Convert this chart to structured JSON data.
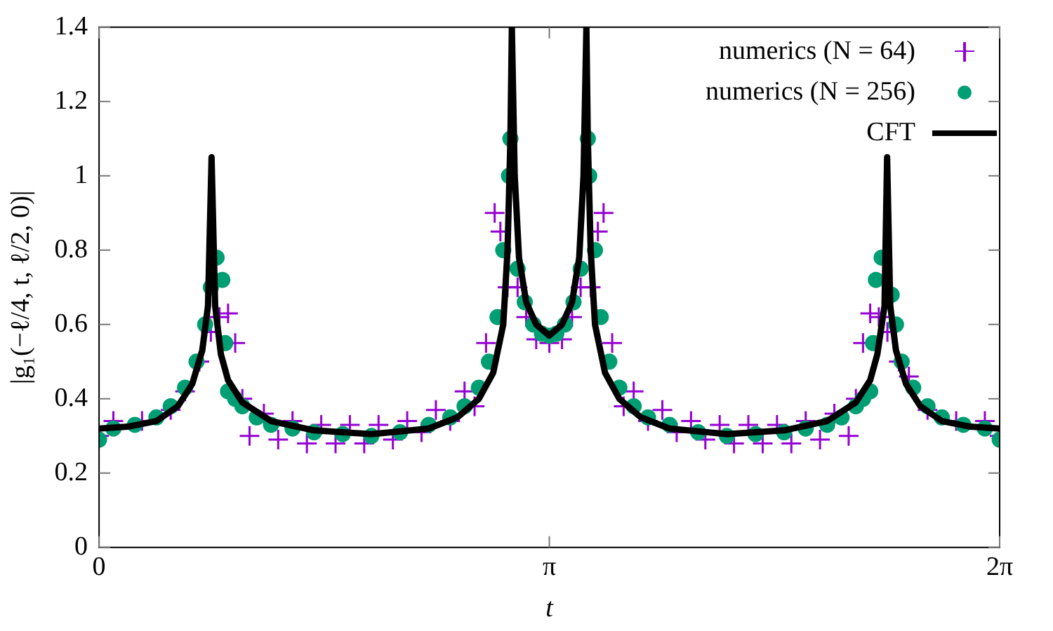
{
  "chart_data": {
    "type": "scatter",
    "xlabel": "t",
    "ylabel": "|g₁(−ℓ/4, t, ℓ/2, 0)|",
    "xlim": [
      0,
      6.2832
    ],
    "xticks": [
      0,
      {
        "value": 3.1416,
        "label": "π"
      },
      {
        "value": 6.2832,
        "label": "2π"
      }
    ],
    "ylim": [
      0,
      1.4
    ],
    "yticks": [
      0,
      0.2,
      0.4,
      0.6,
      0.8,
      1,
      1.2,
      1.4
    ],
    "legend": "top right",
    "series": [
      {
        "name": "numerics (N = 64)",
        "type": "scatter",
        "marker": "cross",
        "color": "#9400d3",
        "x": [
          0,
          0.1,
          0.3,
          0.5,
          0.6,
          0.7,
          0.78,
          0.84,
          0.9,
          0.95,
          1.0,
          1.05,
          1.15,
          1.25,
          1.35,
          1.45,
          1.55,
          1.65,
          1.75,
          1.85,
          1.95,
          2.05,
          2.15,
          2.25,
          2.35,
          2.45,
          2.55,
          2.62,
          2.7,
          2.76,
          2.8,
          2.85,
          2.92,
          2.98,
          3.05,
          3.1416,
          3.23,
          3.3,
          3.36,
          3.43,
          3.48,
          3.52,
          3.58,
          3.66,
          3.73,
          3.83,
          3.93,
          4.03,
          4.13,
          4.23,
          4.33,
          4.43,
          4.53,
          4.63,
          4.73,
          4.83,
          4.93,
          5.03,
          5.13,
          5.23,
          5.28,
          5.33,
          5.38,
          5.44,
          5.5,
          5.58,
          5.65,
          5.78,
          5.98,
          6.18,
          6.2832
        ],
        "values": [
          0.3,
          0.34,
          0.34,
          0.37,
          0.42,
          0.5,
          0.58,
          0.62,
          0.63,
          0.55,
          0.4,
          0.3,
          0.36,
          0.29,
          0.34,
          0.28,
          0.33,
          0.28,
          0.33,
          0.28,
          0.33,
          0.29,
          0.34,
          0.31,
          0.37,
          0.34,
          0.42,
          0.38,
          0.55,
          0.9,
          0.85,
          0.7,
          0.7,
          0.62,
          0.56,
          0.55,
          0.56,
          0.62,
          0.7,
          0.7,
          0.85,
          0.9,
          0.55,
          0.38,
          0.42,
          0.34,
          0.37,
          0.31,
          0.34,
          0.29,
          0.33,
          0.28,
          0.33,
          0.28,
          0.33,
          0.28,
          0.34,
          0.29,
          0.36,
          0.3,
          0.4,
          0.55,
          0.63,
          0.62,
          0.58,
          0.5,
          0.46,
          0.37,
          0.34,
          0.34,
          0.3
        ]
      },
      {
        "name": "numerics (N = 256)",
        "type": "scatter",
        "marker": "circle",
        "color": "#009e73",
        "x": [
          0,
          0.1,
          0.25,
          0.4,
          0.5,
          0.6,
          0.68,
          0.74,
          0.78,
          0.82,
          0.86,
          0.88,
          0.9,
          0.95,
          1.0,
          1.1,
          1.2,
          1.35,
          1.5,
          1.7,
          1.9,
          2.1,
          2.3,
          2.45,
          2.55,
          2.65,
          2.72,
          2.78,
          2.82,
          2.86,
          2.87,
          2.92,
          2.97,
          3.03,
          3.09,
          3.1416,
          3.19,
          3.25,
          3.31,
          3.36,
          3.41,
          3.42,
          3.46,
          3.5,
          3.56,
          3.63,
          3.73,
          3.83,
          3.98,
          4.18,
          4.38,
          4.58,
          4.78,
          4.93,
          5.08,
          5.18,
          5.28,
          5.33,
          5.38,
          5.4,
          5.42,
          5.46,
          5.53,
          5.56,
          5.6,
          5.68,
          5.78,
          5.88,
          6.03,
          6.18,
          6.2832
        ],
        "values": [
          0.29,
          0.32,
          0.33,
          0.35,
          0.38,
          0.43,
          0.5,
          0.6,
          0.7,
          0.78,
          0.72,
          0.55,
          0.42,
          0.4,
          0.38,
          0.35,
          0.33,
          0.32,
          0.31,
          0.305,
          0.3,
          0.31,
          0.33,
          0.35,
          0.38,
          0.43,
          0.5,
          0.62,
          0.8,
          1.0,
          1.1,
          0.75,
          0.66,
          0.6,
          0.575,
          0.57,
          0.575,
          0.6,
          0.66,
          0.75,
          1.1,
          1.0,
          0.8,
          0.62,
          0.5,
          0.43,
          0.38,
          0.35,
          0.33,
          0.31,
          0.3,
          0.305,
          0.31,
          0.32,
          0.33,
          0.35,
          0.38,
          0.4,
          0.42,
          0.55,
          0.72,
          0.78,
          0.68,
          0.6,
          0.5,
          0.43,
          0.38,
          0.35,
          0.33,
          0.32,
          0.29
        ]
      },
      {
        "name": "CFT",
        "type": "line",
        "marker": "none",
        "line_style": "solid",
        "color": "#000000",
        "x": [
          0,
          0.2,
          0.4,
          0.55,
          0.65,
          0.72,
          0.76,
          0.785,
          0.81,
          0.85,
          0.9,
          1.0,
          1.2,
          1.5,
          1.9,
          2.3,
          2.5,
          2.65,
          2.75,
          2.82,
          2.85,
          2.87,
          2.88,
          2.9,
          2.93,
          2.98,
          3.05,
          3.1416,
          3.23,
          3.3,
          3.35,
          3.38,
          3.4,
          3.41,
          3.43,
          3.46,
          3.53,
          3.63,
          3.78,
          3.98,
          4.38,
          4.78,
          5.08,
          5.28,
          5.38,
          5.43,
          5.48,
          5.498,
          5.52,
          5.56,
          5.63,
          5.73,
          5.88,
          6.08,
          6.2832
        ],
        "values": [
          0.32,
          0.325,
          0.34,
          0.38,
          0.44,
          0.53,
          0.65,
          1.05,
          0.65,
          0.52,
          0.45,
          0.39,
          0.34,
          0.315,
          0.305,
          0.32,
          0.35,
          0.4,
          0.47,
          0.6,
          0.8,
          1.1,
          1.4,
          1.0,
          0.78,
          0.66,
          0.6,
          0.57,
          0.6,
          0.66,
          0.78,
          1.0,
          1.4,
          1.1,
          0.8,
          0.6,
          0.47,
          0.4,
          0.35,
          0.32,
          0.305,
          0.315,
          0.34,
          0.39,
          0.45,
          0.52,
          0.65,
          1.05,
          0.65,
          0.53,
          0.44,
          0.38,
          0.34,
          0.325,
          0.32
        ]
      }
    ]
  }
}
